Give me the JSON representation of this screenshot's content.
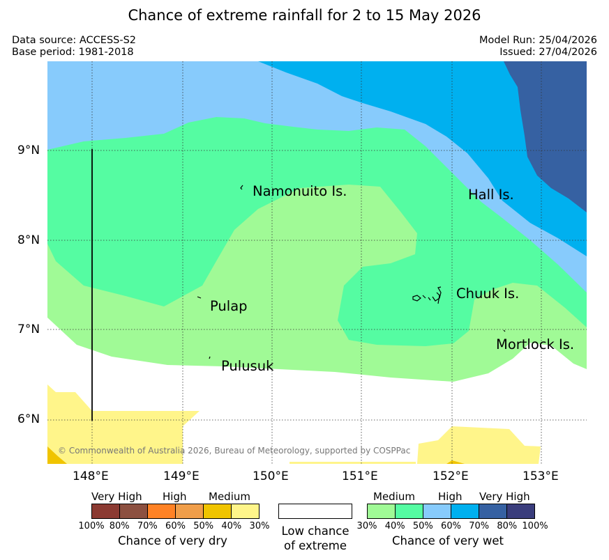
{
  "title": "Chance of extreme rainfall for 2 to 15 May 2026",
  "meta": {
    "data_source": "Data source: ACCESS-S2",
    "base_period": "Base period: 1981-2018",
    "model_run": "Model Run: 25/04/2026",
    "issued": "Issued: 27/04/2026"
  },
  "axes": {
    "x_ticks": [
      "148°E",
      "149°E",
      "150°E",
      "151°E",
      "152°E",
      "153°E"
    ],
    "y_ticks": [
      "9°N",
      "8°N",
      "7°N",
      "6°N"
    ]
  },
  "places": {
    "namonuito": "Namonuito Is.",
    "hall": "Hall Is.",
    "pulap": "Pulap",
    "chuuk": "Chuuk Is.",
    "mortlock": "Mortlock Is.",
    "pulusuk": "Pulusuk"
  },
  "copyright": "© Commonwealth of Australia 2026, Bureau of Meteorology, supported by COSPPac",
  "legend": {
    "dry": {
      "levels": [
        "Very High",
        "High",
        "Medium"
      ],
      "percents": [
        "100%",
        "80%",
        "70%",
        "60%",
        "50%",
        "40%",
        "30%"
      ],
      "caption": "Chance of very dry",
      "colors": [
        "#8b3a32",
        "#8c5040",
        "#ff8225",
        "#f09e4a",
        "#f0c400",
        "#fff58a"
      ]
    },
    "neutral": {
      "caption_line1": "Low chance",
      "caption_line2": "of extreme"
    },
    "wet": {
      "levels": [
        "Medium",
        "High",
        "Very High"
      ],
      "percents": [
        "30%",
        "40%",
        "50%",
        "60%",
        "70%",
        "80%",
        "100%"
      ],
      "caption": "Chance of very wet",
      "colors": [
        "#a0fa96",
        "#55fca2",
        "#87cbfc",
        "#00b0ef",
        "#3661a2",
        "#3a3d7c"
      ]
    }
  }
}
